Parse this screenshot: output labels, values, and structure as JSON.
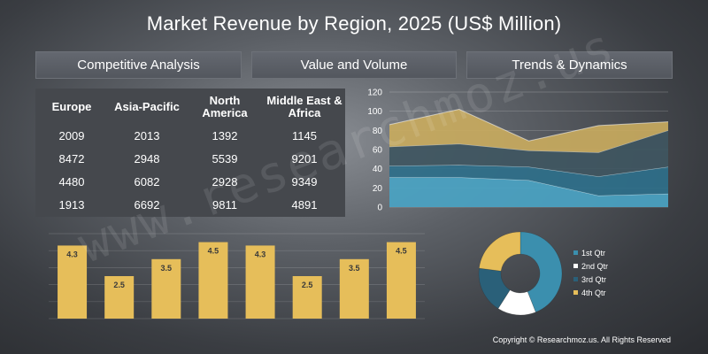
{
  "title": "Market Revenue by Region, 2025 (US$ Million)",
  "tabs": [
    {
      "label": "Competitive Analysis"
    },
    {
      "label": "Value and Volume"
    },
    {
      "label": "Trends & Dynamics"
    }
  ],
  "table": {
    "headers": [
      "Europe",
      "Asia-Pacific",
      "North America",
      "Middle East & Africa"
    ],
    "rows": [
      [
        "2009",
        "2013",
        "1392",
        "1145"
      ],
      [
        "8472",
        "2948",
        "5539",
        "9201"
      ],
      [
        "4480",
        "6082",
        "2928",
        "9349"
      ],
      [
        "1913",
        "6692",
        "9811",
        "4891"
      ]
    ]
  },
  "watermark": "www.researchmoz.us",
  "copyright": "Copyright © Researchmoz.us. All Rights Reserved",
  "chart_data": [
    {
      "type": "area",
      "ylim": [
        0,
        120
      ],
      "yticks": [
        0,
        20,
        40,
        60,
        80,
        100,
        120
      ],
      "x": [
        1,
        2,
        3,
        4,
        5
      ],
      "stacked": true,
      "series": [
        {
          "values": [
            31,
            31,
            28,
            12,
            14
          ],
          "color": "#4aa3c3"
        },
        {
          "values": [
            12,
            13,
            14,
            20,
            28
          ],
          "color": "#2e6f8a"
        },
        {
          "values": [
            20,
            22,
            17,
            25,
            38
          ],
          "color": "#3f5661"
        },
        {
          "values": [
            23,
            36,
            10,
            28,
            9
          ],
          "color": "#c8aa5e"
        }
      ],
      "grid": true
    },
    {
      "type": "bar",
      "values": [
        4.3,
        2.5,
        3.5,
        4.5,
        4.3,
        2.5,
        3.5,
        4.5
      ],
      "data_labels": [
        "4.3",
        "2.5",
        "3.5",
        "4.5",
        "4.3",
        "2.5",
        "3.5",
        "4.5"
      ],
      "ylim": [
        0,
        5
      ],
      "color": "#e6be5a",
      "grid": true
    },
    {
      "type": "pie",
      "donut": true,
      "labels": [
        "1st Qtr",
        "2nd Qtr",
        "3rd Qtr",
        "4th Qtr"
      ],
      "values": [
        44,
        15,
        18,
        23
      ],
      "colors": [
        "#3b8fae",
        "#ffffff",
        "#2a6079",
        "#e6be5a"
      ],
      "legend": "right"
    }
  ]
}
